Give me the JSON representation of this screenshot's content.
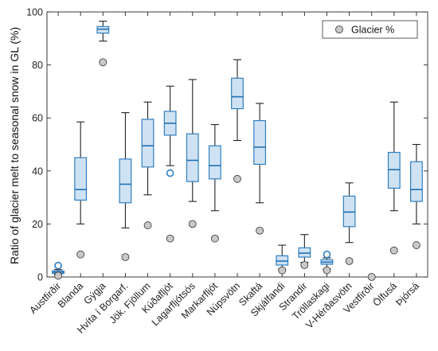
{
  "chart_data": {
    "type": "boxplot",
    "ylabel": "Ratio of glacier melt to seasonal snow in GL (%)",
    "xlabel": "",
    "ylim": [
      0,
      100
    ],
    "yticks": [
      0,
      20,
      40,
      60,
      80,
      100
    ],
    "grid": "off",
    "legend": {
      "position": "top-right",
      "entries": [
        {
          "label": "Glacier %",
          "marker": "filled-gray-circle"
        }
      ]
    },
    "colors": {
      "box_fill": "#cfe2f3",
      "box_edge": "#2f7fc1",
      "median": "#1f6fb4",
      "whisker": "#222222",
      "glacier_marker": "#c8c8c8",
      "outlier_edge": "#2f7fc1"
    },
    "categories": [
      "Austfirðir",
      "Blanda",
      "Gýgja",
      "Hvíta í Borgarf.",
      "Jök. Fjöllum",
      "Kúðafljót",
      "Lagarfljótsós",
      "Markarfljót",
      "Núpsvötn",
      "Skaftá",
      "Skjálfandi",
      "Strandir",
      "Tröllaskagi",
      "V-Hérðasvötn",
      "Vestfirðir",
      "Ölfusá",
      "Þjórsá"
    ],
    "boxes": [
      {
        "category": "Austfirðir",
        "whisker_low": 1,
        "q1": 1.3,
        "median": 1.8,
        "q3": 2.3,
        "whisker_high": 2.8,
        "outliers": [
          4.3
        ]
      },
      {
        "category": "Blanda",
        "whisker_low": 20,
        "q1": 29,
        "median": 33,
        "q3": 45,
        "whisker_high": 58.5,
        "outliers": []
      },
      {
        "category": "Gýgja",
        "whisker_low": 89,
        "q1": 92,
        "median": 93.5,
        "q3": 94.5,
        "whisker_high": 96.5,
        "outliers": []
      },
      {
        "category": "Hvíta í Borgarf.",
        "whisker_low": 18.5,
        "q1": 28,
        "median": 35,
        "q3": 44.5,
        "whisker_high": 62,
        "outliers": []
      },
      {
        "category": "Jök. Fjöllum",
        "whisker_low": 31,
        "q1": 41.5,
        "median": 49.5,
        "q3": 59.5,
        "whisker_high": 66,
        "outliers": []
      },
      {
        "category": "Kúðafljót",
        "whisker_low": 42,
        "q1": 53.5,
        "median": 58,
        "q3": 62.5,
        "whisker_high": 72,
        "outliers": [
          39.2
        ]
      },
      {
        "category": "Lagarfljótsós",
        "whisker_low": 28.5,
        "q1": 36,
        "median": 44,
        "q3": 54,
        "whisker_high": 74.5,
        "outliers": []
      },
      {
        "category": "Markarfljót",
        "whisker_low": 25,
        "q1": 37,
        "median": 42,
        "q3": 49.5,
        "whisker_high": 57.5,
        "outliers": []
      },
      {
        "category": "Núpsvötn",
        "whisker_low": 51.5,
        "q1": 63.5,
        "median": 68,
        "q3": 75,
        "whisker_high": 82,
        "outliers": []
      },
      {
        "category": "Skaftá",
        "whisker_low": 28,
        "q1": 42.5,
        "median": 49,
        "q3": 59,
        "whisker_high": 65.5,
        "outliers": []
      },
      {
        "category": "Skjálfandi",
        "whisker_low": 3,
        "q1": 4.5,
        "median": 6,
        "q3": 8,
        "whisker_high": 12,
        "outliers": []
      },
      {
        "category": "Strandir",
        "whisker_low": 5.5,
        "q1": 7.5,
        "median": 9,
        "q3": 11,
        "whisker_high": 16,
        "outliers": []
      },
      {
        "category": "Tröllaskagi",
        "whisker_low": 3,
        "q1": 4.8,
        "median": 5.6,
        "q3": 6.5,
        "whisker_high": 7.2,
        "outliers": [
          8.5
        ]
      },
      {
        "category": "V-Hérðasvötn",
        "whisker_low": 13,
        "q1": 19,
        "median": 24.5,
        "q3": 30.5,
        "whisker_high": 35.5,
        "outliers": []
      },
      {
        "category": "Vestfirðir",
        "whisker_low": null,
        "q1": null,
        "median": null,
        "q3": null,
        "whisker_high": null,
        "outliers": []
      },
      {
        "category": "Ölfusá",
        "whisker_low": 25,
        "q1": 33.5,
        "median": 40.5,
        "q3": 47,
        "whisker_high": 66,
        "outliers": []
      },
      {
        "category": "Þjórsá",
        "whisker_low": 20,
        "q1": 28.5,
        "median": 33,
        "q3": 43.5,
        "whisker_high": 50,
        "outliers": []
      }
    ],
    "glacier_percent": [
      0.5,
      8.5,
      81,
      7.5,
      19.5,
      14.5,
      20,
      14.5,
      37,
      17.5,
      2.5,
      4.5,
      2.5,
      6,
      0,
      10,
      12
    ]
  }
}
